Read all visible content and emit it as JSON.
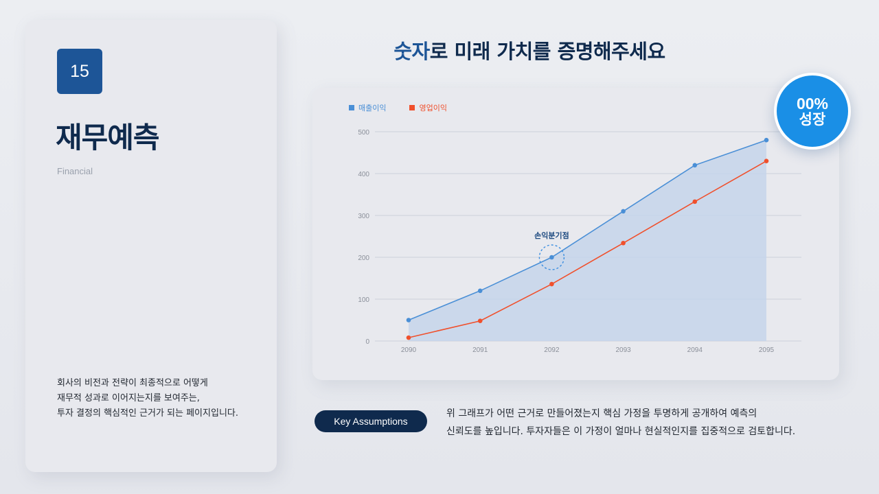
{
  "left_panel": {
    "page_number": "15",
    "title": "재무예측",
    "subtitle": "Financial",
    "description": [
      "회사의 비전과 전략이 최종적으로 어떻게",
      "재무적 성과로 이어지는지를 보여주는,",
      "투자 결정의 핵심적인 근거가 되는 페이지입니다."
    ]
  },
  "header": {
    "title_accent": "숫자",
    "title_rest": "로 미래 가치를 증명해주세요"
  },
  "growth_badge": {
    "percent": "00%",
    "label": "성장"
  },
  "colors": {
    "navy": "#0f2a4d",
    "badge_blue": "#1d5597",
    "revenue": "#4a8fd6",
    "operating": "#f0502c",
    "growth_circle": "#1a8fe6",
    "area_fill": "#c5d5ea"
  },
  "chart_data": {
    "type": "line",
    "title": "",
    "xlabel": "",
    "ylabel": "",
    "x": [
      "2090",
      "2091",
      "2092",
      "2093",
      "2094",
      "2095"
    ],
    "series": [
      {
        "name": "매출이익",
        "values": [
          50,
          120,
          200,
          310,
          420,
          480
        ],
        "color": "#4a8fd6",
        "area": true
      },
      {
        "name": "영업이익",
        "values": [
          8,
          48,
          136,
          234,
          333,
          430
        ],
        "color": "#f0502c",
        "area": false
      }
    ],
    "yticks": [
      "0",
      "100",
      "200",
      "300",
      "400",
      "500"
    ],
    "ylim": [
      0,
      500
    ],
    "grid": true,
    "legend_position": "top-left",
    "annotations": [
      {
        "text": "손익분기점",
        "x": "2092",
        "y": 200,
        "series": "매출이익",
        "style": "dashed-circle"
      }
    ]
  },
  "key_assumptions": {
    "button_label": "Key Assumptions",
    "text": [
      "위 그래프가 어떤 근거로 만들어졌는지 핵심 가정을 투명하게 공개하여 예측의",
      "신뢰도를 높입니다. 투자자들은 이 가정이 얼마나 현실적인지를 집중적으로 검토합니다."
    ]
  }
}
